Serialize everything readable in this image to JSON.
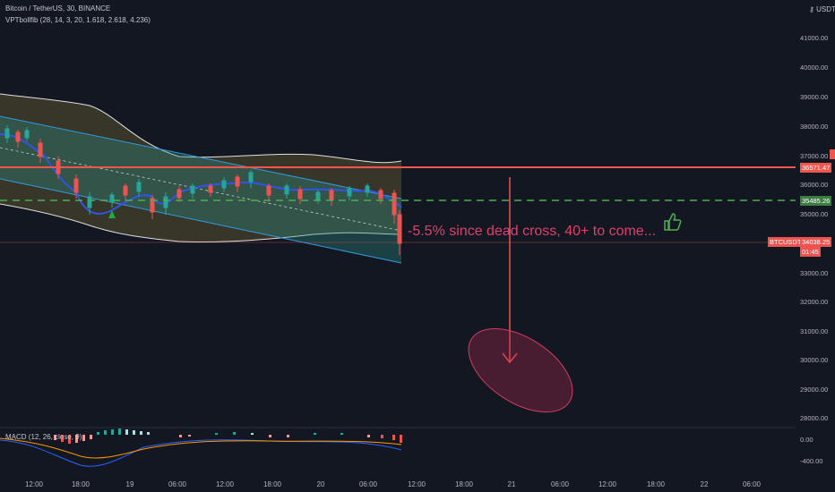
{
  "header": {
    "symbol_line": "Bitcoin / TetherUS, 30, BINANCE",
    "indicator_line": "VPTbollfib (28, 14, 3, 20, 1.618, 2.618, 4.236)",
    "currency": "USDT"
  },
  "price_axis": {
    "labels": [
      "41000.00",
      "40000.00",
      "39000.00",
      "38000.00",
      "37000.00",
      "36000.00",
      "35000.00",
      "33000.00",
      "32000.00",
      "31000.00",
      "30000.00",
      "29000.00",
      "28000.00"
    ]
  },
  "tags": {
    "red_level": "36571.47",
    "green_level": "35485.26",
    "symbol": "BTCUSDT",
    "current_price": "34038.25",
    "countdown": "01:45"
  },
  "time_axis": {
    "labels": [
      "12:00",
      "18:00",
      "19",
      "06:00",
      "12:00",
      "18:00",
      "20",
      "06:00",
      "12:00",
      "18:00",
      "21",
      "06:00",
      "12:00",
      "18:00",
      "22",
      "06:00"
    ]
  },
  "macd": {
    "label": "MACD (12, 26, close, 9)",
    "axis": [
      "0.00",
      "-400.00"
    ]
  },
  "annotation": {
    "text": "-5.5% since dead cross, 40+ to come..."
  },
  "colors": {
    "background": "#131722",
    "red_line": "#f0554e",
    "green_dashed": "#4caf50",
    "channel_fill": "#2a8f86",
    "ellipse": "#b0284d",
    "text_annotation": "#e0406b"
  },
  "icons": {
    "thumb": "thumbs-up-icon",
    "arrow": "arrow-down-icon",
    "signal": "triangle-up-icon"
  }
}
